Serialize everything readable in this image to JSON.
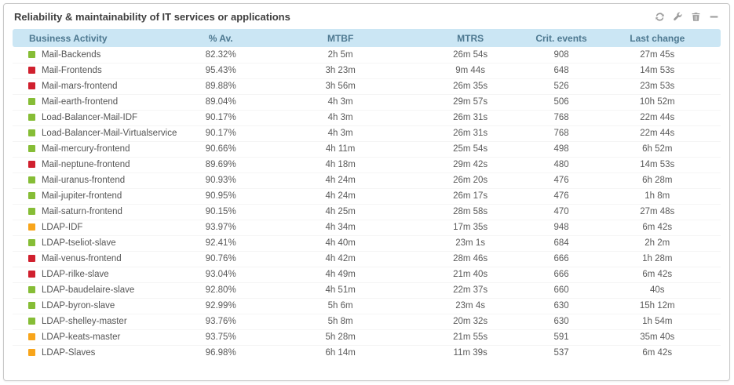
{
  "panel": {
    "title": "Reliability & maintainability of IT services or applications",
    "toolbar_icons": [
      "refresh-icon",
      "wrench-icon",
      "trash-icon",
      "collapse-icon"
    ]
  },
  "colors": {
    "green": "#86bd36",
    "red": "#d0202e",
    "orange": "#f8a51b",
    "header_bg": "#cbe6f4",
    "header_text": "#4d7890"
  },
  "table": {
    "columns": [
      "Business Activity",
      "% Av.",
      "MTBF",
      "MTRS",
      "Crit. events",
      "Last change"
    ],
    "rows": [
      {
        "status": "green",
        "activity": "Mail-Backends",
        "av": "82.32%",
        "mtbf": "2h 5m",
        "mtrs": "26m 54s",
        "crit": "908",
        "last": "27m 45s"
      },
      {
        "status": "red",
        "activity": "Mail-Frontends",
        "av": "95.43%",
        "mtbf": "3h 23m",
        "mtrs": "9m 44s",
        "crit": "648",
        "last": "14m 53s"
      },
      {
        "status": "red",
        "activity": "Mail-mars-frontend",
        "av": "89.88%",
        "mtbf": "3h 56m",
        "mtrs": "26m 35s",
        "crit": "526",
        "last": "23m 53s"
      },
      {
        "status": "green",
        "activity": "Mail-earth-frontend",
        "av": "89.04%",
        "mtbf": "4h 3m",
        "mtrs": "29m 57s",
        "crit": "506",
        "last": "10h 52m"
      },
      {
        "status": "green",
        "activity": "Load-Balancer-Mail-IDF",
        "av": "90.17%",
        "mtbf": "4h 3m",
        "mtrs": "26m 31s",
        "crit": "768",
        "last": "22m 44s"
      },
      {
        "status": "green",
        "activity": "Load-Balancer-Mail-Virtualservice",
        "av": "90.17%",
        "mtbf": "4h 3m",
        "mtrs": "26m 31s",
        "crit": "768",
        "last": "22m 44s"
      },
      {
        "status": "green",
        "activity": "Mail-mercury-frontend",
        "av": "90.66%",
        "mtbf": "4h 11m",
        "mtrs": "25m 54s",
        "crit": "498",
        "last": "6h 52m"
      },
      {
        "status": "red",
        "activity": "Mail-neptune-frontend",
        "av": "89.69%",
        "mtbf": "4h 18m",
        "mtrs": "29m 42s",
        "crit": "480",
        "last": "14m 53s"
      },
      {
        "status": "green",
        "activity": "Mail-uranus-frontend",
        "av": "90.93%",
        "mtbf": "4h 24m",
        "mtrs": "26m 20s",
        "crit": "476",
        "last": "6h 28m"
      },
      {
        "status": "green",
        "activity": "Mail-jupiter-frontend",
        "av": "90.95%",
        "mtbf": "4h 24m",
        "mtrs": "26m 17s",
        "crit": "476",
        "last": "1h 8m"
      },
      {
        "status": "green",
        "activity": "Mail-saturn-frontend",
        "av": "90.15%",
        "mtbf": "4h 25m",
        "mtrs": "28m 58s",
        "crit": "470",
        "last": "27m 48s"
      },
      {
        "status": "orange",
        "activity": "LDAP-IDF",
        "av": "93.97%",
        "mtbf": "4h 34m",
        "mtrs": "17m 35s",
        "crit": "948",
        "last": "6m 42s"
      },
      {
        "status": "green",
        "activity": "LDAP-tseliot-slave",
        "av": "92.41%",
        "mtbf": "4h 40m",
        "mtrs": "23m 1s",
        "crit": "684",
        "last": "2h 2m"
      },
      {
        "status": "red",
        "activity": "Mail-venus-frontend",
        "av": "90.76%",
        "mtbf": "4h 42m",
        "mtrs": "28m 46s",
        "crit": "666",
        "last": "1h 28m"
      },
      {
        "status": "red",
        "activity": "LDAP-rilke-slave",
        "av": "93.04%",
        "mtbf": "4h 49m",
        "mtrs": "21m 40s",
        "crit": "666",
        "last": "6m 42s"
      },
      {
        "status": "green",
        "activity": "LDAP-baudelaire-slave",
        "av": "92.80%",
        "mtbf": "4h 51m",
        "mtrs": "22m 37s",
        "crit": "660",
        "last": "40s"
      },
      {
        "status": "green",
        "activity": "LDAP-byron-slave",
        "av": "92.99%",
        "mtbf": "5h 6m",
        "mtrs": "23m 4s",
        "crit": "630",
        "last": "15h 12m"
      },
      {
        "status": "green",
        "activity": "LDAP-shelley-master",
        "av": "93.76%",
        "mtbf": "5h 8m",
        "mtrs": "20m 32s",
        "crit": "630",
        "last": "1h 54m"
      },
      {
        "status": "orange",
        "activity": "LDAP-keats-master",
        "av": "93.75%",
        "mtbf": "5h 28m",
        "mtrs": "21m 55s",
        "crit": "591",
        "last": "35m 40s"
      },
      {
        "status": "orange",
        "activity": "LDAP-Slaves",
        "av": "96.98%",
        "mtbf": "6h 14m",
        "mtrs": "11m 39s",
        "crit": "537",
        "last": "6m 42s"
      }
    ]
  }
}
